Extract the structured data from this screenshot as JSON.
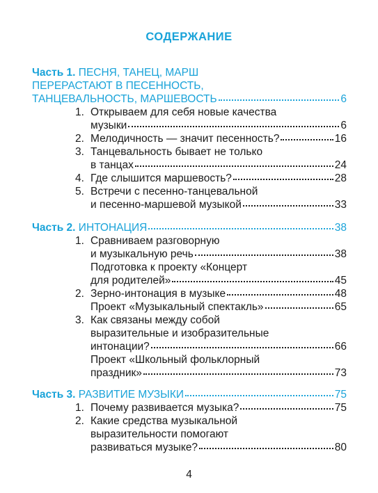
{
  "title": "СОДЕРЖАНИЕ",
  "part1": {
    "label": "Часть 1.",
    "line1": "ПЕСНЯ, ТАНЕЦ, МАРШ",
    "line2": "ПЕРЕРАСТАЮТ В ПЕСЕННОСТЬ,",
    "line3": "ТАНЦЕВАЛЬНОСТЬ, МАРШЕВОСТЬ",
    "page": "6",
    "items": [
      {
        "num": "1.",
        "line1": "Открываем для себя новые качества",
        "line2": "музыки",
        "page": "6"
      },
      {
        "num": "2.",
        "line1": "Мелодичность — значит песенность?",
        "page": "16"
      },
      {
        "num": "3.",
        "line1": "Танцевальность бывает не только",
        "line2": "в танцах",
        "page": "24"
      },
      {
        "num": "4.",
        "line1": "Где слышится маршевость?",
        "page": "28"
      },
      {
        "num": "5.",
        "line1": "Встречи с песенно-танцевальной",
        "line2": "и песенно-маршевой музыкой",
        "page": "33"
      }
    ]
  },
  "part2": {
    "label": "Часть 2.",
    "line1": "ИНТОНАЦИЯ",
    "page": "38",
    "items": [
      {
        "num": "1.",
        "line1": "Сравниваем разговорную",
        "line2": "и музыкальную речь",
        "page": "38"
      },
      {
        "num": "",
        "line1": "Подготовка к проекту «Концерт",
        "line2": "для родителей»",
        "page": "45"
      },
      {
        "num": "2.",
        "line1": "Зерно-интонация в музыке",
        "page": "48"
      },
      {
        "num": "",
        "line1": "Проект «Музыкальный спектакль»",
        "page": "65"
      },
      {
        "num": "3.",
        "line1": "Как связаны между собой",
        "line2": "выразительные и изобразительные",
        "line3": "интонации?",
        "page": "66"
      },
      {
        "num": "",
        "line1": "Проект «Школьный фольклорный",
        "line2": "праздник»",
        "page": "73"
      }
    ]
  },
  "part3": {
    "label": "Часть 3.",
    "line1": "РАЗВИТИЕ МУЗЫКИ",
    "page": "75",
    "items": [
      {
        "num": "1.",
        "line1": "Почему развивается музыка?",
        "page": "75"
      },
      {
        "num": "2.",
        "line1": "Какие средства музыкальной",
        "line2": "выразительности помогают",
        "line3": "развиваться музыке?",
        "page": "80"
      }
    ]
  },
  "page_number": "4"
}
